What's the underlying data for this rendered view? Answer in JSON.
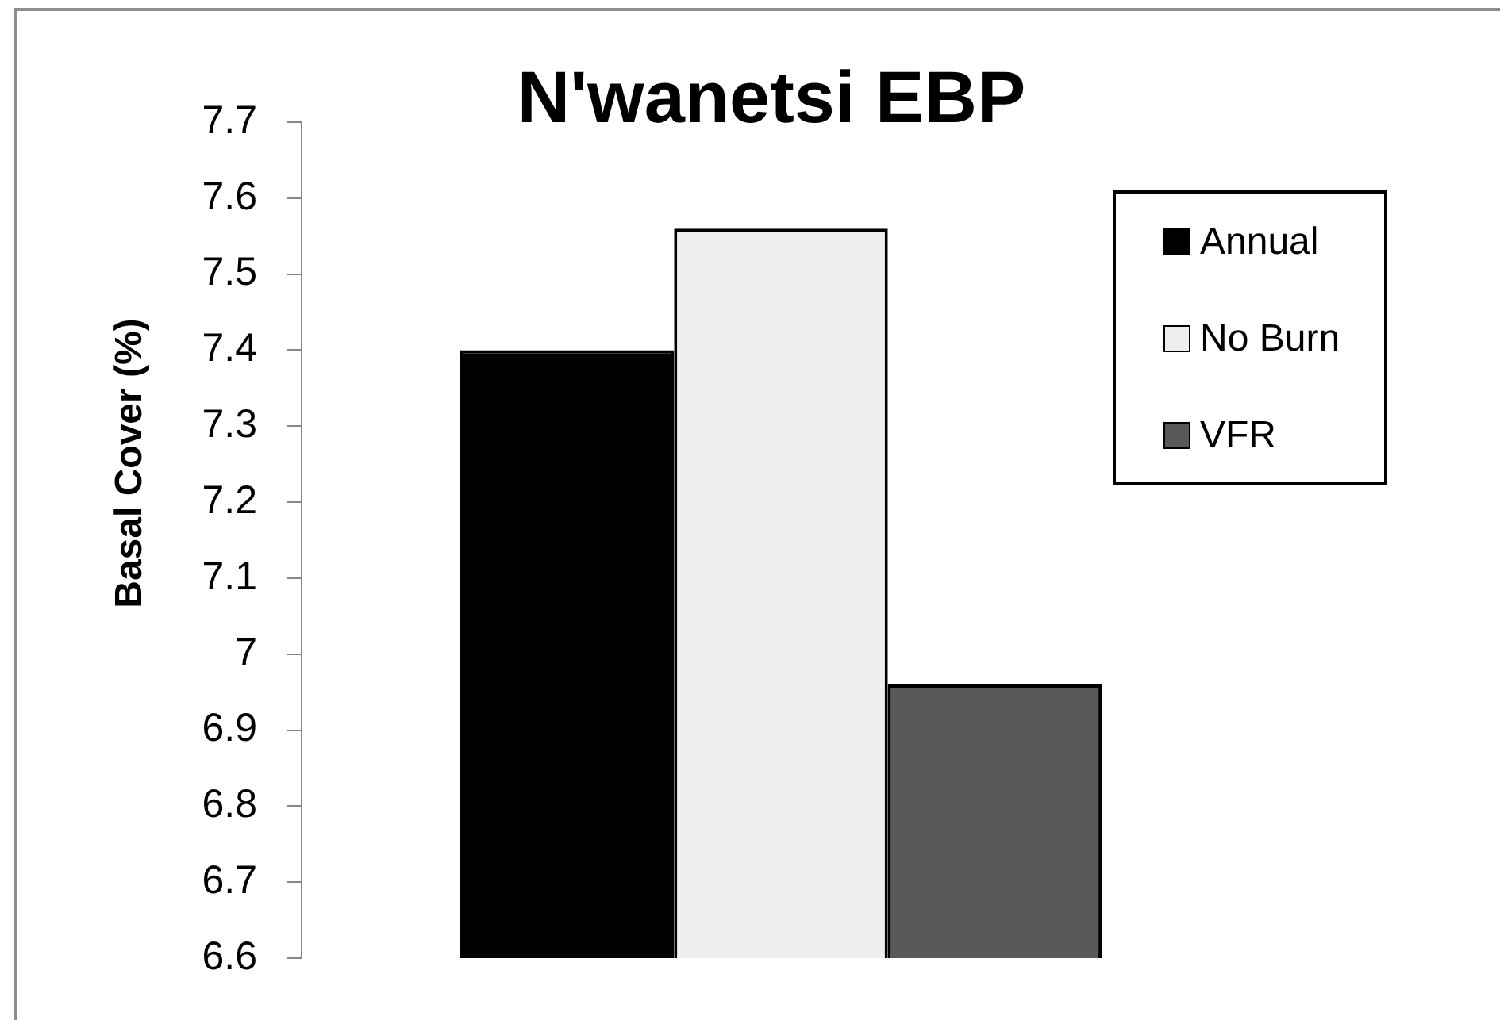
{
  "chart_data": {
    "type": "bar",
    "title": "N'wanetsi EBP",
    "ylabel": "Basal Cover (%)",
    "categories": [
      null
    ],
    "series": [
      {
        "name": "Annual",
        "color": "#000000",
        "values": [
          7.4
        ]
      },
      {
        "name": "No Burn",
        "color": "#eeeeee",
        "values": [
          7.56
        ]
      },
      {
        "name": "VFR",
        "color": "#595959",
        "values": [
          6.96
        ]
      }
    ],
    "ylim": [
      6.6,
      7.7
    ],
    "yticks": [
      6.6,
      6.7,
      6.8,
      6.9,
      7,
      7.1,
      7.2,
      7.3,
      7.4,
      7.5,
      7.6,
      7.7
    ],
    "legend": "top right"
  }
}
